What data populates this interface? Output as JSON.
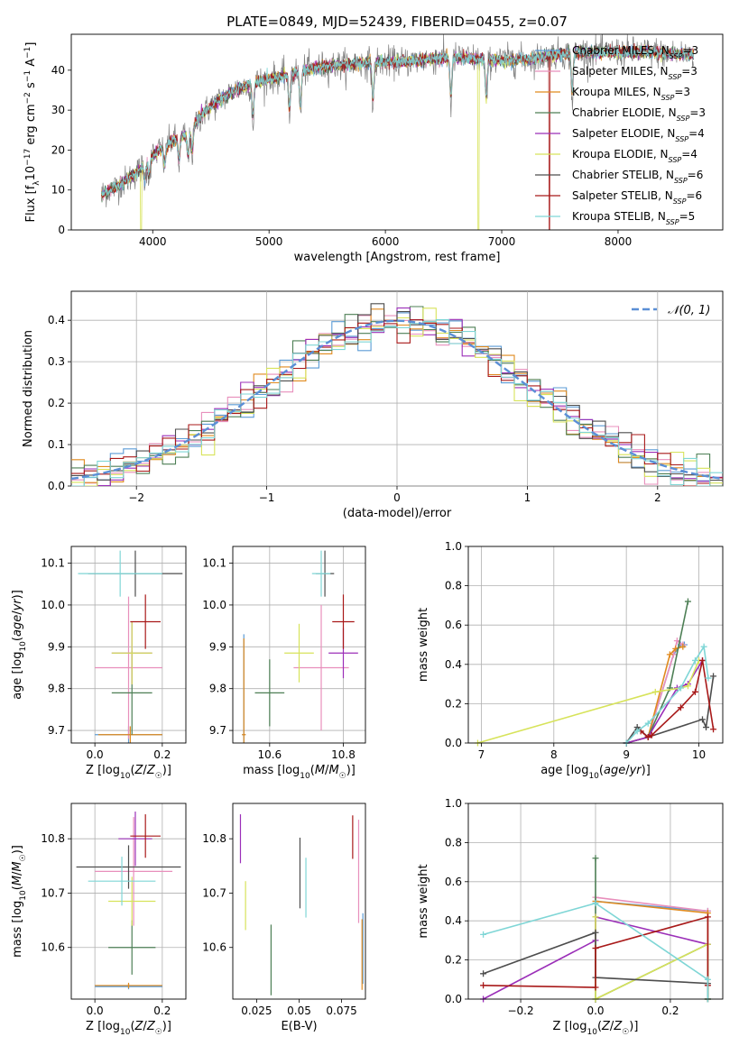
{
  "figure": {
    "title": "PLATE=0849, MJD=52439, FIBERID=0455, z=0.07"
  },
  "colors": {
    "Chabrier MILES": "#5b9bd5",
    "Salpeter MILES": "#e88fbc",
    "Kroupa MILES": "#e08a1e",
    "Chabrier ELODIE": "#4d7f55",
    "Salpeter ELODIE": "#9b2fb8",
    "Kroupa ELODIE": "#d7e35a",
    "Chabrier STELIB": "#4d4d4d",
    "Salpeter STELIB": "#a81919",
    "Kroupa STELIB": "#7fd6d6",
    "data": "#808080",
    "normal": "#5b8fd6"
  },
  "legend_spectrum": [
    {
      "model": "Chabrier MILES",
      "label": "Chabrier MILES, N",
      "sub": "SSP",
      "tail": "=3"
    },
    {
      "model": "Salpeter MILES",
      "label": "Salpeter MILES, N",
      "sub": "SSP",
      "tail": "=3"
    },
    {
      "model": "Kroupa MILES",
      "label": "Kroupa MILES, N",
      "sub": "SSP",
      "tail": "=3"
    },
    {
      "model": "Chabrier ELODIE",
      "label": "Chabrier ELODIE, N",
      "sub": "SSP",
      "tail": "=3"
    },
    {
      "model": "Salpeter ELODIE",
      "label": "Salpeter ELODIE, N",
      "sub": "SSP",
      "tail": "=4"
    },
    {
      "model": "Kroupa ELODIE",
      "label": "Kroupa ELODIE, N",
      "sub": "SSP",
      "tail": "=4"
    },
    {
      "model": "Chabrier STELIB",
      "label": "Chabrier STELIB, N",
      "sub": "SSP",
      "tail": "=6"
    },
    {
      "model": "Salpeter STELIB",
      "label": "Salpeter STELIB, N",
      "sub": "SSP",
      "tail": "=6"
    },
    {
      "model": "Kroupa STELIB",
      "label": "Kroupa STELIB, N",
      "sub": "SSP",
      "tail": "=5"
    }
  ],
  "chart_data": [
    {
      "id": "spectrum",
      "type": "line",
      "xlabel": "wavelength [Angstrom, rest frame]",
      "ylabel": "Flux [f_λ 10^-17 erg cm^-2 s^-1 A^-1]",
      "xlim": [
        3300,
        8900
      ],
      "ylim": [
        0,
        49
      ],
      "xticks": [
        4000,
        5000,
        6000,
        7000,
        8000
      ],
      "yticks": [
        0,
        10,
        20,
        30,
        40
      ],
      "grid": false,
      "legend": "right",
      "continuum": {
        "x": [
          3560,
          3700,
          3850,
          3950,
          4050,
          4150,
          4300,
          4400,
          4500,
          4700,
          4900,
          5100,
          5300,
          5500,
          5700,
          5900,
          6100,
          6300,
          6500,
          6700,
          6900,
          7100,
          7300,
          7500,
          7700,
          7900,
          8100,
          8300,
          8500,
          8650
        ],
        "y": [
          9,
          11,
          14,
          17,
          20,
          22,
          24,
          28,
          31,
          35,
          37,
          38.5,
          40,
          41,
          41.5,
          42,
          42,
          42.5,
          43,
          43,
          42.5,
          42.5,
          43,
          44,
          44.5,
          44.5,
          44.5,
          44.5,
          44,
          44
        ]
      },
      "absorption_lines": [
        3934,
        3969,
        4102,
        4226,
        4304,
        4340,
        4861,
        5175,
        5270,
        5893,
        6563,
        6867,
        7605
      ],
      "model_dropouts": [
        {
          "model": "Kroupa ELODIE",
          "x": 6800
        },
        {
          "model": "Salpeter STELIB",
          "x": 7410
        },
        {
          "model": "Kroupa ELODIE",
          "x": 3900
        }
      ]
    },
    {
      "id": "residual-histogram",
      "type": "bar",
      "xlabel": "(data-model)/error",
      "ylabel": "Normed distribution",
      "xlim": [
        -2.5,
        2.5
      ],
      "ylim": [
        0,
        0.47
      ],
      "xticks": [
        -2,
        -1,
        0,
        1,
        2
      ],
      "yticks": [
        0,
        0.1,
        0.2,
        0.3,
        0.4
      ],
      "grid": true,
      "bin_width": 0.1,
      "legend": [
        {
          "label": "𝒩(0, 1)",
          "style": "dashed"
        }
      ],
      "reference_curve": {
        "name": "𝒩(0, 1)",
        "mean": 0,
        "sigma": 1
      }
    },
    {
      "id": "age-vs-Z",
      "type": "scatter",
      "xlabel": "Z [log10(Z/Z☉)]",
      "ylabel": "age [log10(age/yr)]",
      "xlim": [
        -0.07,
        0.27
      ],
      "ylim": [
        9.67,
        10.14
      ],
      "xticks": [
        0.0,
        0.2
      ],
      "yticks": [
        9.7,
        9.8,
        9.9,
        10.0,
        10.1
      ],
      "grid": true,
      "points": [
        {
          "model": "Chabrier MILES",
          "x": 0.1,
          "xerr": 0.1,
          "y": 9.69,
          "yerr": 0.02
        },
        {
          "model": "Salpeter MILES",
          "x": 0.1,
          "xerr": 0.1,
          "y": 9.85,
          "yerr": 0.17
        },
        {
          "model": "Kroupa MILES",
          "x": 0.105,
          "xerr": 0.095,
          "y": 9.69,
          "yerr": 0.02
        },
        {
          "model": "Chabrier ELODIE",
          "x": 0.11,
          "xerr": 0.06,
          "y": 9.79,
          "yerr": 0.1
        },
        {
          "model": "Salpeter ELODIE",
          "x": 0.11,
          "xerr": 0.06,
          "y": 9.885,
          "yerr": 0.075
        },
        {
          "model": "Kroupa ELODIE",
          "x": 0.11,
          "xerr": 0.06,
          "y": 9.885,
          "yerr": 0.075
        },
        {
          "model": "Chabrier STELIB",
          "x": 0.12,
          "xerr": 0.14,
          "y": 10.075,
          "yerr": 0.055
        },
        {
          "model": "Salpeter STELIB",
          "x": 0.15,
          "xerr": 0.045,
          "y": 9.96,
          "yerr": 0.065
        },
        {
          "model": "Kroupa STELIB",
          "x": 0.075,
          "xerr": 0.125,
          "y": 10.075,
          "yerr": 0.055
        }
      ]
    },
    {
      "id": "age-vs-mass",
      "type": "scatter",
      "xlabel": "mass [log10(M/M☉)]",
      "ylabel": "",
      "xlim": [
        10.5,
        10.86
      ],
      "ylim": [
        9.67,
        10.14
      ],
      "xticks": [
        10.6,
        10.8
      ],
      "yticks": [
        9.7,
        9.8,
        9.9,
        10.0,
        10.1
      ],
      "grid": true,
      "points": [
        {
          "model": "Chabrier MILES",
          "x": 10.53,
          "xerr": 0.005,
          "y": 9.69,
          "yerr": 0.24
        },
        {
          "model": "Salpeter MILES",
          "x": 10.74,
          "xerr": 0.075,
          "y": 9.85,
          "yerr": 0.15
        },
        {
          "model": "Kroupa MILES",
          "x": 10.53,
          "xerr": 0.005,
          "y": 9.69,
          "yerr": 0.23
        },
        {
          "model": "Chabrier ELODIE",
          "x": 10.6,
          "xerr": 0.04,
          "y": 9.79,
          "yerr": 0.08
        },
        {
          "model": "Salpeter ELODIE",
          "x": 10.8,
          "xerr": 0.04,
          "y": 9.885,
          "yerr": 0.06
        },
        {
          "model": "Kroupa ELODIE",
          "x": 10.68,
          "xerr": 0.04,
          "y": 9.885,
          "yerr": 0.07
        },
        {
          "model": "Chabrier STELIB",
          "x": 10.75,
          "xerr": 0.025,
          "y": 10.075,
          "yerr": 0.055
        },
        {
          "model": "Salpeter STELIB",
          "x": 10.8,
          "xerr": 0.03,
          "y": 9.96,
          "yerr": 0.065
        },
        {
          "model": "Kroupa STELIB",
          "x": 10.74,
          "xerr": 0.025,
          "y": 10.075,
          "yerr": 0.055
        }
      ]
    },
    {
      "id": "weight-vs-age",
      "type": "line",
      "xlabel": "age [log10(age/yr)]",
      "ylabel": "mass weight",
      "xlim": [
        6.82,
        10.33
      ],
      "ylim": [
        0,
        1.0
      ],
      "xticks": [
        7,
        8,
        9,
        10
      ],
      "yticks": [
        0,
        0.2,
        0.4,
        0.6,
        0.8,
        1.0
      ],
      "grid": true,
      "series": [
        {
          "model": "Chabrier MILES",
          "x": [
            9.0,
            9.3,
            9.65,
            9.75,
            9.8
          ],
          "y": [
            0.0,
            0.03,
            0.45,
            0.5,
            0.5
          ]
        },
        {
          "model": "Salpeter MILES",
          "x": [
            9.0,
            9.3,
            9.65,
            9.7,
            9.78
          ],
          "y": [
            0.0,
            0.03,
            0.45,
            0.52,
            0.5
          ]
        },
        {
          "model": "Kroupa MILES",
          "x": [
            9.0,
            9.3,
            9.6,
            9.68,
            9.78
          ],
          "y": [
            0.0,
            0.03,
            0.45,
            0.48,
            0.49
          ]
        },
        {
          "model": "Chabrier ELODIE",
          "x": [
            9.0,
            9.3,
            9.6,
            9.85
          ],
          "y": [
            0.0,
            0.03,
            0.28,
            0.72
          ]
        },
        {
          "model": "Salpeter ELODIE",
          "x": [
            9.0,
            9.3,
            9.7,
            9.85,
            10.05
          ],
          "y": [
            0.0,
            0.03,
            0.28,
            0.3,
            0.42
          ]
        },
        {
          "model": "Kroupa ELODIE",
          "x": [
            6.95,
            9.4,
            9.75,
            9.85,
            10.0
          ],
          "y": [
            0.0,
            0.26,
            0.28,
            0.29,
            0.42
          ]
        },
        {
          "model": "Chabrier STELIB",
          "x": [
            9.0,
            9.15,
            9.3,
            10.05,
            10.1,
            10.2
          ],
          "y": [
            0.0,
            0.08,
            0.03,
            0.12,
            0.08,
            0.34
          ]
        },
        {
          "model": "Salpeter STELIB",
          "x": [
            9.2,
            9.3,
            9.35,
            9.75,
            9.95,
            10.05,
            10.2
          ],
          "y": [
            0.06,
            0.03,
            0.04,
            0.18,
            0.26,
            0.42,
            0.07
          ]
        },
        {
          "model": "Kroupa STELIB",
          "x": [
            9.0,
            9.15,
            9.3,
            9.75,
            9.95,
            10.07,
            10.13
          ],
          "y": [
            0.0,
            0.06,
            0.1,
            0.28,
            0.42,
            0.49,
            0.33
          ]
        }
      ]
    },
    {
      "id": "mass-vs-Z",
      "type": "scatter",
      "xlabel": "Z [log10(Z/Z☉)]",
      "ylabel": "mass [log10(M/M☉)]",
      "xlim": [
        -0.07,
        0.27
      ],
      "ylim": [
        10.505,
        10.865
      ],
      "xticks": [
        0.0,
        0.2
      ],
      "yticks": [
        10.6,
        10.7,
        10.8
      ],
      "grid": true,
      "points": [
        {
          "model": "Chabrier MILES",
          "x": 0.1,
          "xerr": 0.1,
          "y": 10.528,
          "yerr": 0.005
        },
        {
          "model": "Salpeter MILES",
          "x": 0.115,
          "xerr": 0.115,
          "y": 10.74,
          "yerr": 0.1
        },
        {
          "model": "Kroupa MILES",
          "x": 0.1,
          "xerr": 0.1,
          "y": 10.53,
          "yerr": 0.005
        },
        {
          "model": "Chabrier ELODIE",
          "x": 0.11,
          "xerr": 0.07,
          "y": 10.6,
          "yerr": 0.05
        },
        {
          "model": "Salpeter ELODIE",
          "x": 0.12,
          "xerr": 0.05,
          "y": 10.8,
          "yerr": 0.05
        },
        {
          "model": "Kroupa ELODIE",
          "x": 0.11,
          "xerr": 0.07,
          "y": 10.685,
          "yerr": 0.045
        },
        {
          "model": "Chabrier STELIB",
          "x": 0.1,
          "xerr": 0.155,
          "y": 10.748,
          "yerr": 0.04
        },
        {
          "model": "Salpeter STELIB",
          "x": 0.15,
          "xerr": 0.045,
          "y": 10.805,
          "yerr": 0.04
        },
        {
          "model": "Kroupa STELIB",
          "x": 0.08,
          "xerr": 0.1,
          "y": 10.722,
          "yerr": 0.045
        }
      ]
    },
    {
      "id": "mass-vs-EBV",
      "type": "scatter",
      "xlabel": "E(B-V)",
      "ylabel": "",
      "xlim": [
        0.011,
        0.089
      ],
      "ylim": [
        10.505,
        10.865
      ],
      "xticks": [
        0.025,
        0.05,
        0.075
      ],
      "yticks": [
        10.6,
        10.7,
        10.8
      ],
      "grid": false,
      "points": [
        {
          "model": "Salpeter ELODIE",
          "x": 0.0155,
          "y": 10.8,
          "yerr": 0.045
        },
        {
          "model": "Kroupa ELODIE",
          "x": 0.0185,
          "y": 10.677,
          "yerr": 0.045
        },
        {
          "model": "Chabrier ELODIE",
          "x": 0.0335,
          "y": 10.577,
          "yerr": 0.065
        },
        {
          "model": "Chabrier STELIB",
          "x": 0.0505,
          "y": 10.737,
          "yerr": 0.065
        },
        {
          "model": "Kroupa STELIB",
          "x": 0.054,
          "y": 10.71,
          "yerr": 0.055
        },
        {
          "model": "Salpeter STELIB",
          "x": 0.0815,
          "y": 10.803,
          "yerr": 0.04
        },
        {
          "model": "Salpeter MILES",
          "x": 0.085,
          "y": 10.74,
          "yerr": 0.095
        },
        {
          "model": "Chabrier MILES",
          "x": 0.0875,
          "y": 10.598,
          "yerr": 0.065
        },
        {
          "model": "Kroupa MILES",
          "x": 0.087,
          "y": 10.587,
          "yerr": 0.065
        }
      ]
    },
    {
      "id": "weight-vs-Z",
      "type": "line",
      "xlabel": "Z [log10(Z/Z☉)]",
      "ylabel": "mass weight",
      "xlim": [
        -0.34,
        0.34
      ],
      "ylim": [
        0,
        1.0
      ],
      "xticks": [
        -0.2,
        0.0,
        0.2
      ],
      "yticks": [
        0,
        0.2,
        0.4,
        0.6,
        0.8,
        1.0
      ],
      "grid": true,
      "series": [
        {
          "model": "Chabrier MILES",
          "x": [
            0.0,
            0.3,
            0.3
          ],
          "y": [
            0.5,
            0.45,
            0.0
          ]
        },
        {
          "model": "Salpeter MILES",
          "x": [
            0.0,
            0.3,
            0.3
          ],
          "y": [
            0.52,
            0.45,
            0.0
          ]
        },
        {
          "model": "Kroupa MILES",
          "x": [
            0.0,
            0.3,
            0.3
          ],
          "y": [
            0.5,
            0.44,
            0.0
          ]
        },
        {
          "model": "Chabrier ELODIE",
          "x": [
            0.0,
            0.0,
            0.3,
            0.3
          ],
          "y": [
            0.72,
            0.0,
            0.28,
            0.0
          ]
        },
        {
          "model": "Salpeter ELODIE",
          "x": [
            -0.3,
            0.0,
            0.0,
            0.3
          ],
          "y": [
            0.0,
            0.3,
            0.42,
            0.28
          ]
        },
        {
          "model": "Kroupa ELODIE",
          "x": [
            0.0,
            0.0,
            0.3,
            0.3
          ],
          "y": [
            0.42,
            0.0,
            0.28,
            0.0
          ]
        },
        {
          "model": "Chabrier STELIB",
          "x": [
            -0.3,
            0.0,
            0.0,
            0.3,
            0.3
          ],
          "y": [
            0.13,
            0.34,
            0.11,
            0.08,
            0.0
          ]
        },
        {
          "model": "Salpeter STELIB",
          "x": [
            -0.3,
            0.0,
            0.0,
            0.3,
            0.3
          ],
          "y": [
            0.07,
            0.06,
            0.26,
            0.42,
            0.07
          ]
        },
        {
          "model": "Kroupa STELIB",
          "x": [
            -0.3,
            0.0,
            0.3,
            0.3
          ],
          "y": [
            0.33,
            0.49,
            0.1,
            0.0
          ]
        }
      ]
    }
  ]
}
